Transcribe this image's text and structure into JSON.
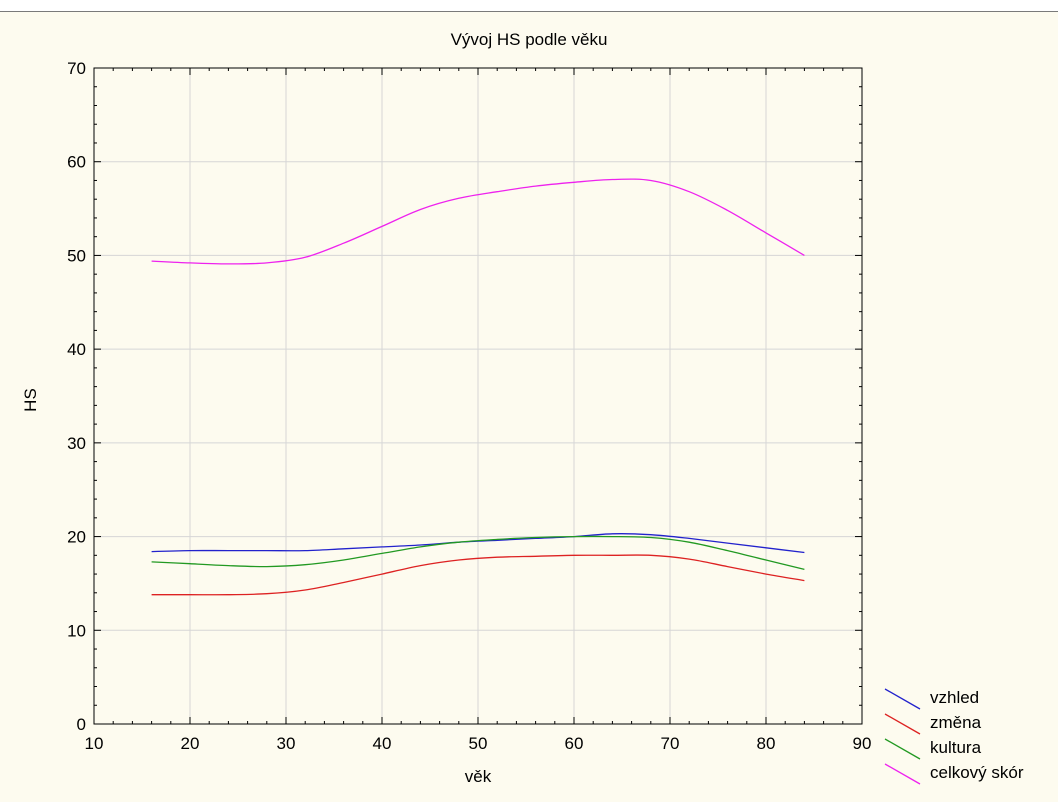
{
  "chart_data": {
    "type": "line",
    "title": "Vývoj HS podle věku",
    "xlabel": "věk",
    "ylabel": "HS",
    "xlim": [
      10,
      90
    ],
    "ylim": [
      0,
      70
    ],
    "xticks": [
      10,
      20,
      30,
      40,
      50,
      60,
      70,
      80,
      90
    ],
    "yticks": [
      0,
      10,
      20,
      30,
      40,
      50,
      60,
      70
    ],
    "grid": true,
    "legend_position": "bottom-right-outside",
    "x": [
      16,
      20,
      24,
      28,
      32,
      36,
      40,
      44,
      48,
      52,
      56,
      60,
      64,
      68,
      72,
      76,
      80,
      84
    ],
    "series": [
      {
        "name": "vzhled",
        "color": "#2222cc",
        "values": [
          18.4,
          18.5,
          18.5,
          18.5,
          18.5,
          18.7,
          18.9,
          19.1,
          19.4,
          19.6,
          19.8,
          20.0,
          20.3,
          20.2,
          19.8,
          19.3,
          18.8,
          18.3
        ]
      },
      {
        "name": "změna",
        "color": "#dd2222",
        "values": [
          13.8,
          13.8,
          13.8,
          13.9,
          14.3,
          15.1,
          16.0,
          16.9,
          17.5,
          17.8,
          17.9,
          18.0,
          18.0,
          18.0,
          17.6,
          16.8,
          16.0,
          15.3
        ]
      },
      {
        "name": "kultura",
        "color": "#229922",
        "values": [
          17.3,
          17.1,
          16.9,
          16.8,
          17.0,
          17.5,
          18.2,
          18.9,
          19.4,
          19.7,
          19.9,
          20.0,
          20.0,
          19.9,
          19.4,
          18.5,
          17.5,
          16.5
        ]
      },
      {
        "name": "celkový skór",
        "color": "#ee22ee",
        "values": [
          49.4,
          49.2,
          49.1,
          49.2,
          49.8,
          51.3,
          53.1,
          54.9,
          56.1,
          56.8,
          57.4,
          57.8,
          58.1,
          58.0,
          56.8,
          54.8,
          52.4,
          50.0
        ]
      }
    ]
  }
}
